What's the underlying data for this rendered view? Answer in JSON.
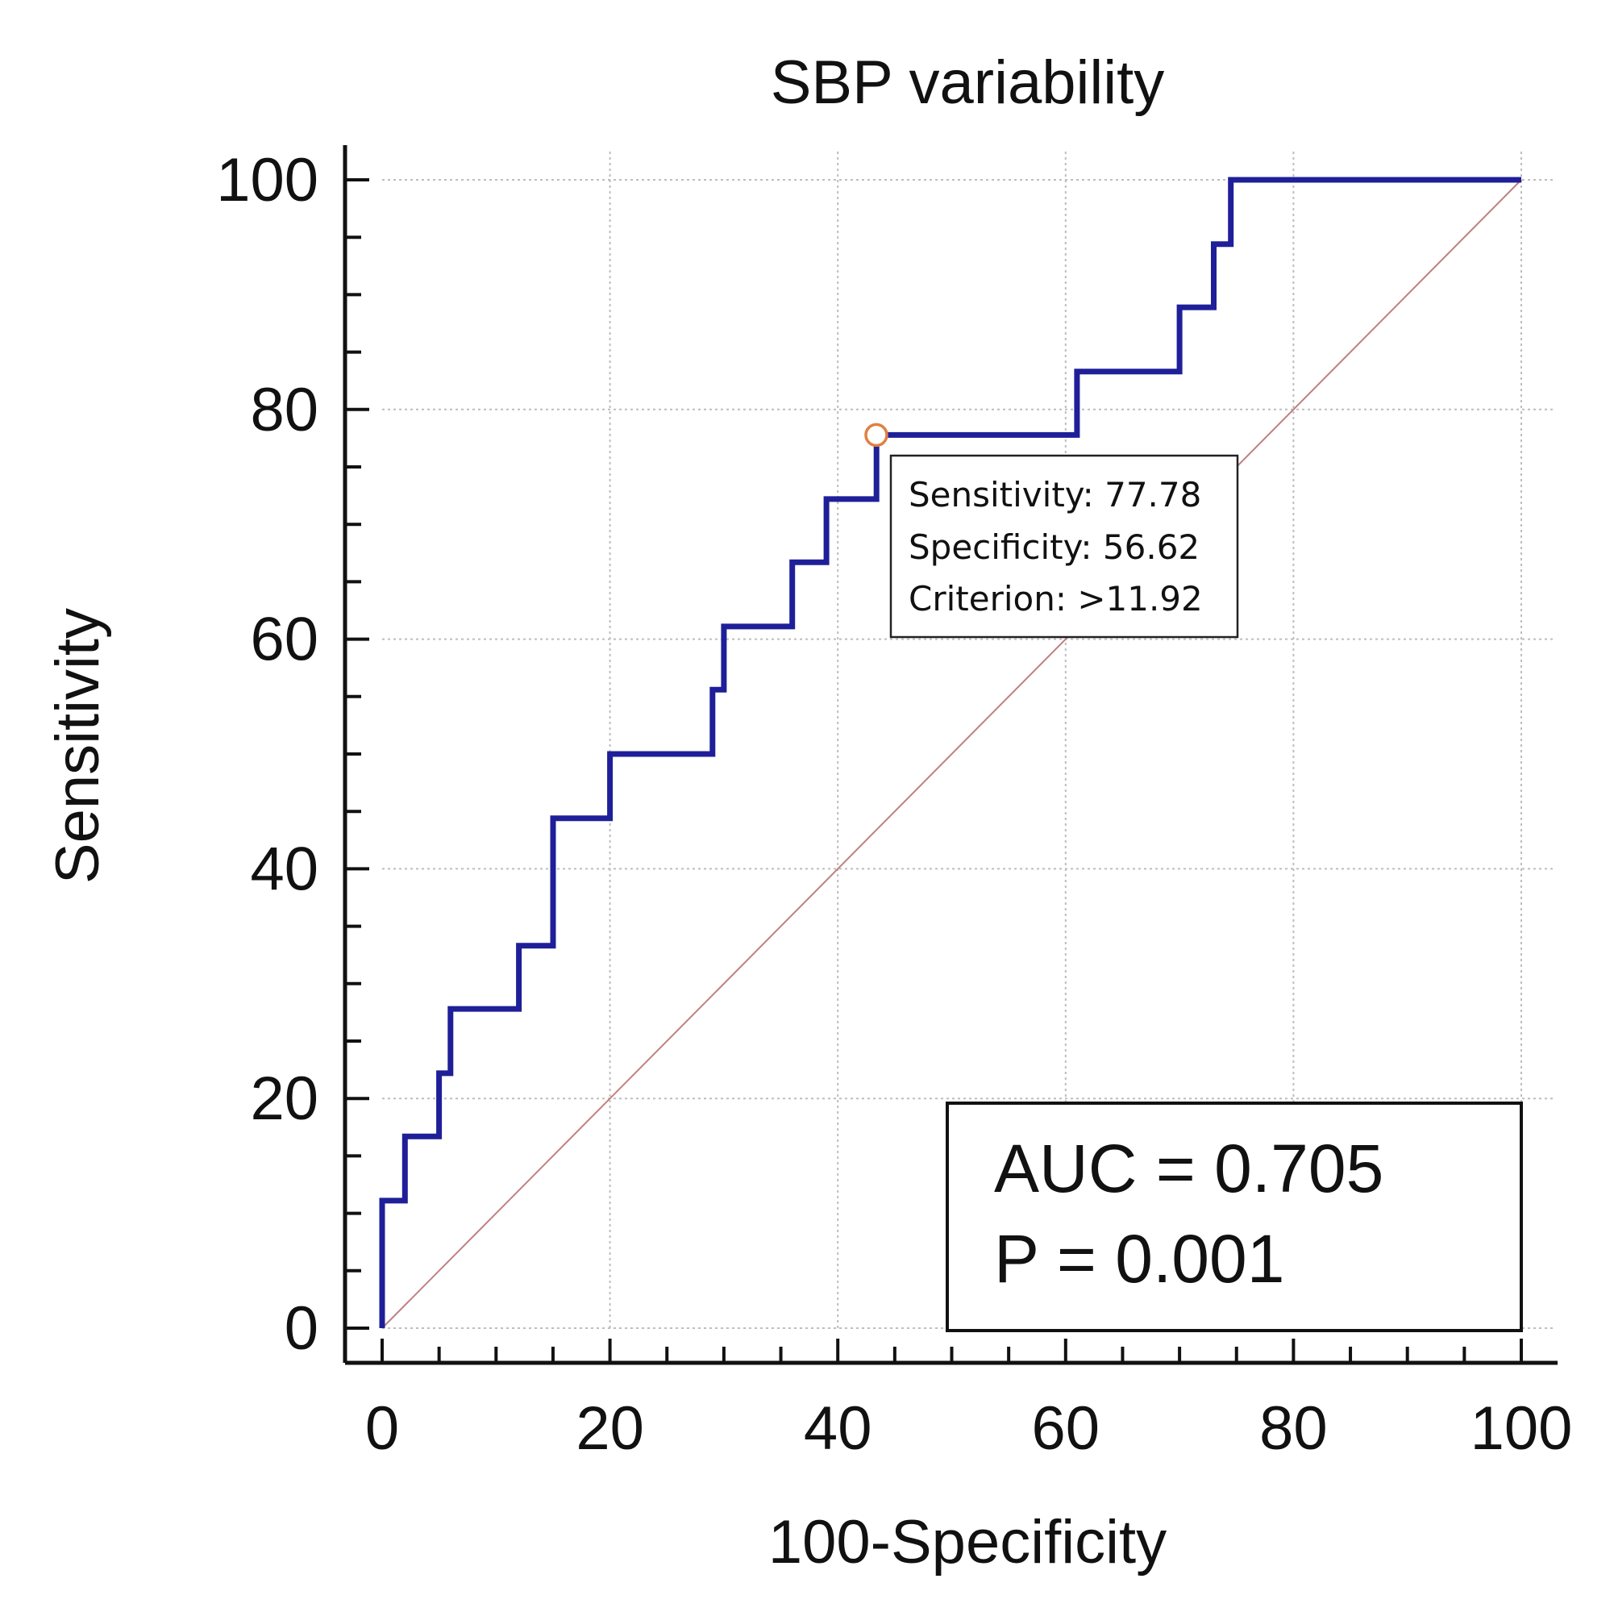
{
  "chart_data": {
    "type": "line",
    "title": "SBP variability",
    "xlabel": "100-Specificity",
    "ylabel": "Sensitivity",
    "xlim": [
      0,
      100
    ],
    "ylim": [
      0,
      100
    ],
    "x_ticks": [
      "0",
      "20",
      "40",
      "60",
      "80",
      "100"
    ],
    "y_ticks": [
      "0",
      "20",
      "40",
      "60",
      "80",
      "100"
    ],
    "grid": true,
    "series": [
      {
        "name": "ROC curve",
        "color": "#1f1f99",
        "points": [
          [
            0,
            0
          ],
          [
            0,
            11.1
          ],
          [
            2,
            11.1
          ],
          [
            2,
            16.7
          ],
          [
            5,
            16.7
          ],
          [
            5,
            22.2
          ],
          [
            6,
            22.2
          ],
          [
            6,
            27.8
          ],
          [
            12,
            27.8
          ],
          [
            12,
            33.3
          ],
          [
            15,
            33.3
          ],
          [
            15,
            44.4
          ],
          [
            20,
            44.4
          ],
          [
            20,
            50.0
          ],
          [
            29,
            50.0
          ],
          [
            29,
            55.6
          ],
          [
            30,
            55.6
          ],
          [
            30,
            61.1
          ],
          [
            36,
            61.1
          ],
          [
            36,
            66.7
          ],
          [
            39,
            66.7
          ],
          [
            39,
            72.2
          ],
          [
            43.4,
            72.2
          ],
          [
            43.4,
            77.78
          ],
          [
            61,
            77.78
          ],
          [
            61,
            83.3
          ],
          [
            70,
            83.3
          ],
          [
            70,
            88.9
          ],
          [
            73,
            88.9
          ],
          [
            73,
            94.4
          ],
          [
            74.5,
            94.4
          ],
          [
            74.5,
            100
          ],
          [
            100,
            100
          ]
        ]
      },
      {
        "name": "Reference line",
        "color": "#c08080",
        "points": [
          [
            0,
            0
          ],
          [
            100,
            100
          ]
        ]
      }
    ],
    "highlight_point": {
      "x": 43.38,
      "y": 77.78,
      "label_lines": [
        "Sensitivity: 77.78",
        "Specificity: 56.62",
        "Criterion: >11.92"
      ]
    },
    "annotation": {
      "lines": [
        "AUC = 0.705",
        "P = 0.001"
      ]
    }
  }
}
